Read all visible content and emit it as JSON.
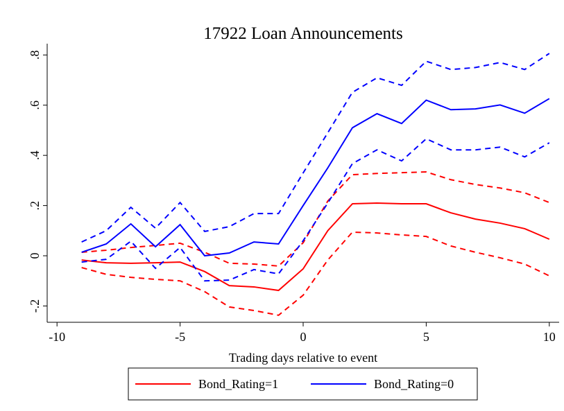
{
  "chart_data": {
    "type": "line",
    "title": "17922 Loan Announcements",
    "x_label": "Trading days relative to event",
    "x": [
      -9,
      -8,
      -7,
      -6,
      -5,
      -4,
      -3,
      -2,
      -1,
      0,
      1,
      2,
      3,
      4,
      5,
      6,
      7,
      8,
      9,
      10
    ],
    "series": [
      {
        "name": "Bond_Rating=1",
        "color": "#ff0000",
        "values": [
          -0.017,
          -0.028,
          -0.03,
          -0.028,
          -0.025,
          -0.063,
          -0.119,
          -0.124,
          -0.138,
          -0.052,
          0.1,
          0.207,
          0.21,
          0.207,
          0.207,
          0.171,
          0.146,
          0.13,
          0.108,
          0.066
        ],
        "upper": [
          0.014,
          0.022,
          0.033,
          0.041,
          0.05,
          0.014,
          -0.03,
          -0.033,
          -0.041,
          0.052,
          0.218,
          0.323,
          0.328,
          0.331,
          0.334,
          0.303,
          0.284,
          0.27,
          0.251,
          0.212
        ],
        "lower": [
          -0.047,
          -0.074,
          -0.086,
          -0.094,
          -0.1,
          -0.143,
          -0.204,
          -0.218,
          -0.237,
          -0.157,
          -0.017,
          0.094,
          0.091,
          0.083,
          0.077,
          0.039,
          0.014,
          -0.008,
          -0.033,
          -0.08
        ]
      },
      {
        "name": "Bond_Rating=0",
        "color": "#0000ff",
        "values": [
          0.014,
          0.047,
          0.127,
          0.036,
          0.124,
          0,
          0.011,
          0.055,
          0.047,
          0.2,
          0.35,
          0.51,
          0.566,
          0.527,
          0.62,
          0.582,
          0.585,
          0.601,
          0.568,
          0.626
        ],
        "upper": [
          0.055,
          0.1,
          0.193,
          0.11,
          0.212,
          0.097,
          0.116,
          0.168,
          0.168,
          0.33,
          0.49,
          0.651,
          0.709,
          0.679,
          0.775,
          0.742,
          0.75,
          0.77,
          0.742,
          0.806
        ],
        "lower": [
          -0.025,
          -0.014,
          0.058,
          -0.05,
          0.033,
          -0.1,
          -0.097,
          -0.055,
          -0.072,
          0.06,
          0.21,
          0.367,
          0.422,
          0.378,
          0.466,
          0.422,
          0.422,
          0.433,
          0.394,
          0.45
        ]
      }
    ],
    "xlim": [
      -10.4,
      10.4
    ],
    "xticks": [
      -10,
      -5,
      0,
      5,
      10
    ],
    "ylim": [
      -0.265,
      0.845
    ],
    "yticks": [
      {
        "value": -0.2,
        "label": "-.2"
      },
      0,
      {
        "value": 0.2,
        "label": ".2"
      },
      {
        "value": 0.4,
        "label": ".4"
      },
      {
        "value": 0.6,
        "label": ".6"
      },
      {
        "value": 0.8,
        "label": ".8"
      }
    ]
  }
}
